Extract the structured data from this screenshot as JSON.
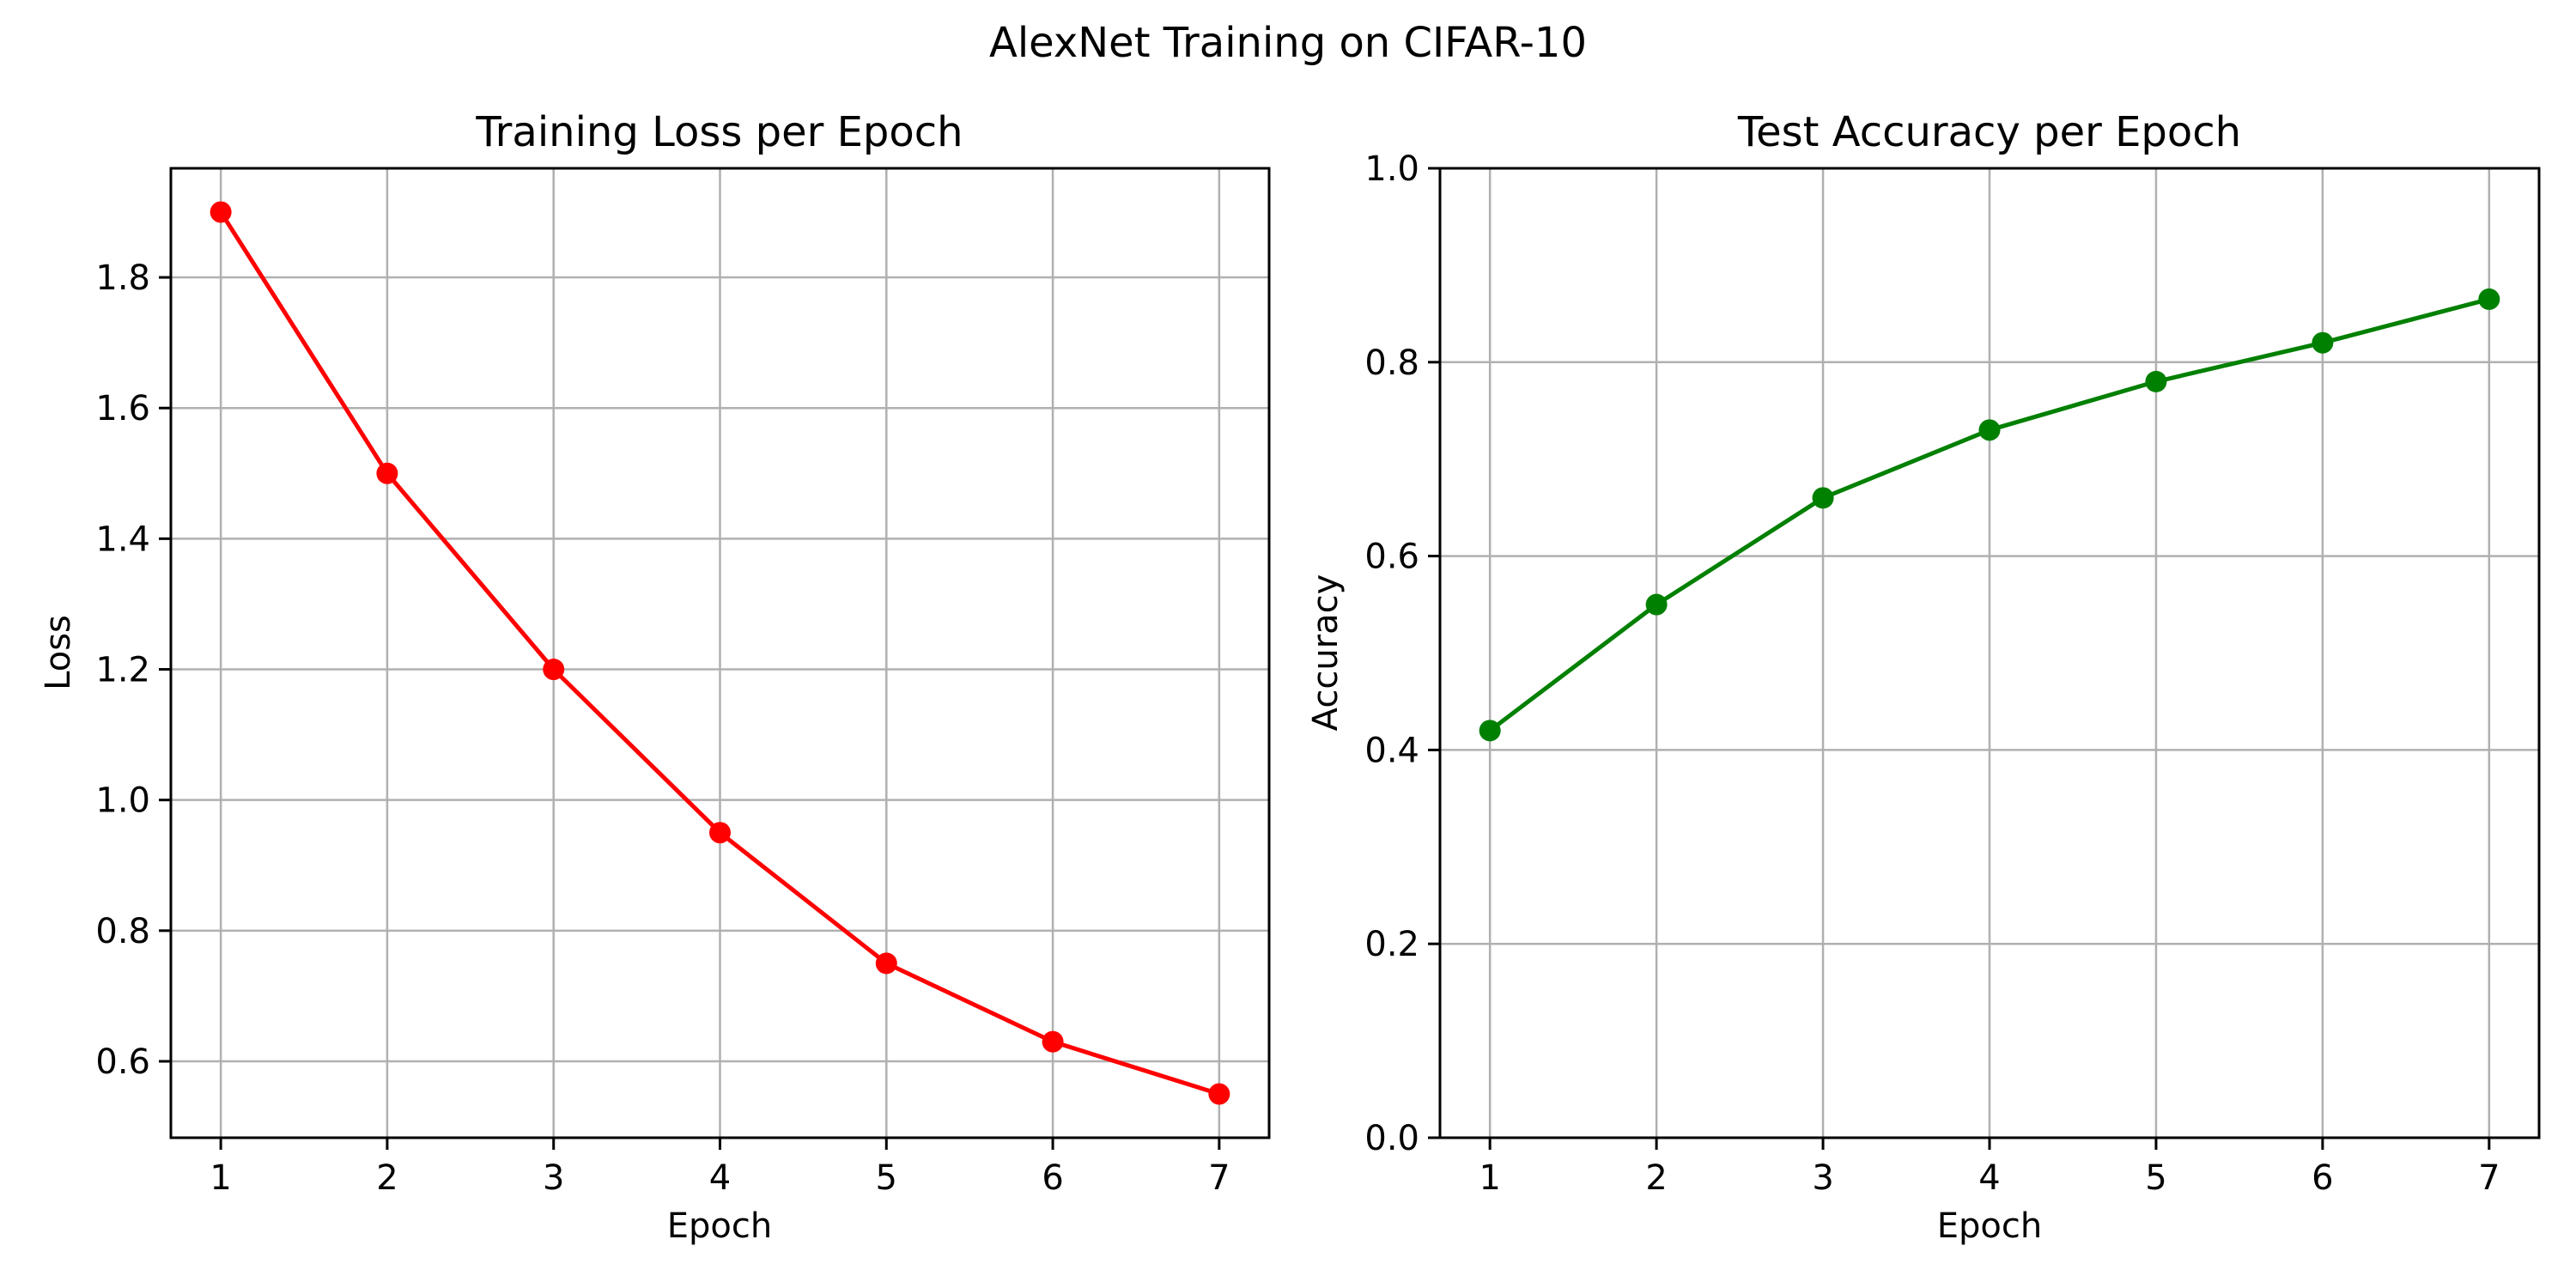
{
  "figure": {
    "suptitle": "AlexNet Training on CIFAR-10",
    "background": "#ffffff",
    "grid_color": "#b0b0b0"
  },
  "chart_data": [
    {
      "type": "line",
      "title": "Training Loss per Epoch",
      "xlabel": "Epoch",
      "ylabel": "Loss",
      "x": [
        1,
        2,
        3,
        4,
        5,
        6,
        7
      ],
      "series": [
        {
          "name": "Training Loss",
          "values": [
            1.9,
            1.5,
            1.2,
            0.95,
            0.75,
            0.63,
            0.55
          ],
          "color": "#ff0000",
          "marker": "circle"
        }
      ],
      "xticks": [
        1,
        2,
        3,
        4,
        5,
        6,
        7
      ],
      "yticks": [
        0.6,
        0.8,
        1.0,
        1.2,
        1.4,
        1.6,
        1.8
      ],
      "ytick_labels": [
        "0.6",
        "0.8",
        "1.0",
        "1.2",
        "1.4",
        "1.6",
        "1.8"
      ],
      "xlim": [
        0.7,
        7.3
      ],
      "ylim": [
        0.483,
        1.967
      ],
      "grid": true,
      "legend": null
    },
    {
      "type": "line",
      "title": "Test Accuracy per Epoch",
      "xlabel": "Epoch",
      "ylabel": "Accuracy",
      "x": [
        1,
        2,
        3,
        4,
        5,
        6,
        7
      ],
      "series": [
        {
          "name": "Test Accuracy",
          "values": [
            0.42,
            0.55,
            0.66,
            0.73,
            0.78,
            0.82,
            0.865
          ],
          "color": "#008000",
          "marker": "circle"
        }
      ],
      "xticks": [
        1,
        2,
        3,
        4,
        5,
        6,
        7
      ],
      "yticks": [
        0.0,
        0.2,
        0.4,
        0.6,
        0.8,
        1.0
      ],
      "ytick_labels": [
        "0.0",
        "0.2",
        "0.4",
        "0.6",
        "0.8",
        "1.0"
      ],
      "xlim": [
        0.7,
        7.3
      ],
      "ylim": [
        0.0,
        1.0
      ],
      "grid": true,
      "legend": null
    }
  ]
}
